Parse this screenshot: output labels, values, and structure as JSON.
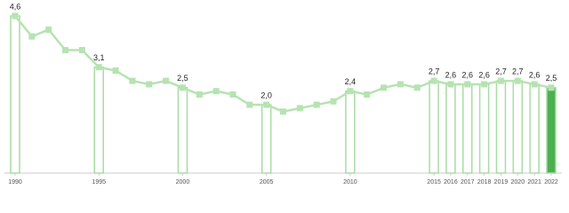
{
  "chart_data": {
    "type": "line",
    "x": [
      1990,
      1991,
      1992,
      1993,
      1994,
      1995,
      1996,
      1997,
      1998,
      1999,
      2000,
      2001,
      2002,
      2003,
      2004,
      2005,
      2006,
      2007,
      2008,
      2009,
      2010,
      2011,
      2012,
      2013,
      2014,
      2015,
      2016,
      2017,
      2018,
      2019,
      2020,
      2021,
      2022
    ],
    "values": [
      4.6,
      4.0,
      4.2,
      3.6,
      3.6,
      3.1,
      3.0,
      2.7,
      2.6,
      2.7,
      2.5,
      2.3,
      2.4,
      2.3,
      2.0,
      2.0,
      1.8,
      1.9,
      2.0,
      2.1,
      2.4,
      2.3,
      2.5,
      2.6,
      2.5,
      2.7,
      2.6,
      2.6,
      2.6,
      2.7,
      2.7,
      2.6,
      2.5
    ],
    "color": "#b6e3b1",
    "bars": {
      "x": [
        1990,
        1995,
        2000,
        2005,
        2010,
        2015,
        2016,
        2017,
        2018,
        2019,
        2020,
        2021,
        2022
      ],
      "values": [
        4.6,
        3.1,
        2.5,
        2.0,
        2.4,
        2.7,
        2.6,
        2.6,
        2.6,
        2.7,
        2.7,
        2.6,
        2.5
      ],
      "value_labels": [
        "4,6",
        "3,1",
        "2,5",
        "2,0",
        "2,4",
        "2,7",
        "2,6",
        "2,6",
        "2,6",
        "2,7",
        "2,7",
        "2,6",
        "2,5"
      ],
      "stroke": "#a8dca3",
      "fill": [
        "#ffffff",
        "#ffffff",
        "#ffffff",
        "#ffffff",
        "#ffffff",
        "#ffffff",
        "#ffffff",
        "#ffffff",
        "#ffffff",
        "#ffffff",
        "#ffffff",
        "#ffffff",
        "#4caf50"
      ]
    },
    "xticks": [
      1990,
      1995,
      2000,
      2005,
      2010,
      2015,
      2016,
      2017,
      2018,
      2019,
      2020,
      2021,
      2022
    ],
    "xlim": [
      1990,
      2022
    ],
    "ylim": [
      0,
      4.6
    ]
  }
}
